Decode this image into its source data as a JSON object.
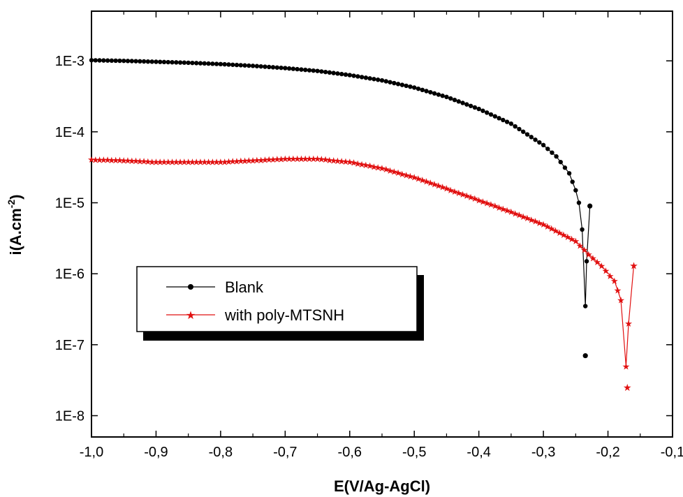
{
  "chart_data": {
    "type": "line",
    "xlabel": "E(V/Ag-AgCl)",
    "ylabel": "i(A.cm",
    "ylabel_superscript": "-2",
    "ylabel_close": ")",
    "xlim": [
      -1.0,
      -0.1
    ],
    "ylim_log10": [
      -8.3,
      -2.3
    ],
    "yscale": "log",
    "x_ticks": [
      {
        "value": -1.0,
        "label": "-1,0"
      },
      {
        "value": -0.9,
        "label": "-0,9"
      },
      {
        "value": -0.8,
        "label": "-0,8"
      },
      {
        "value": -0.7,
        "label": "-0,7"
      },
      {
        "value": -0.6,
        "label": "-0,6"
      },
      {
        "value": -0.5,
        "label": "-0,5"
      },
      {
        "value": -0.4,
        "label": "-0,4"
      },
      {
        "value": -0.3,
        "label": "-0,3"
      },
      {
        "value": -0.2,
        "label": "-0,2"
      },
      {
        "value": -0.1,
        "label": "-0,1"
      }
    ],
    "y_ticks": [
      {
        "value": 1e-08,
        "label": "1E-8"
      },
      {
        "value": 1e-07,
        "label": "1E-7"
      },
      {
        "value": 1e-06,
        "label": "1E-6"
      },
      {
        "value": 1e-05,
        "label": "1E-5"
      },
      {
        "value": 0.0001,
        "label": "1E-4"
      },
      {
        "value": 0.001,
        "label": "1E-3"
      }
    ],
    "legend": {
      "position": "lower-left, inside plot"
    },
    "series": [
      {
        "name": "Blank",
        "color": "#000000",
        "marker": "circle",
        "points": [
          [
            -1.0,
            0.00102
          ],
          [
            -0.95,
            0.001
          ],
          [
            -0.9,
            0.00097
          ],
          [
            -0.85,
            0.00094
          ],
          [
            -0.8,
            0.0009
          ],
          [
            -0.75,
            0.00085
          ],
          [
            -0.7,
            0.00079
          ],
          [
            -0.65,
            0.00072
          ],
          [
            -0.6,
            0.00063
          ],
          [
            -0.55,
            0.00053
          ],
          [
            -0.5,
            0.00042
          ],
          [
            -0.45,
            0.00031
          ],
          [
            -0.4,
            0.00021
          ],
          [
            -0.35,
            0.00013
          ],
          [
            -0.3,
            6.5e-05
          ],
          [
            -0.28,
            4.5e-05
          ],
          [
            -0.26,
            2.6e-05
          ],
          [
            -0.25,
            1.5e-05
          ],
          [
            -0.245,
            1e-05
          ],
          [
            -0.24,
            4.2e-06
          ],
          [
            -0.235,
            3.5e-07
          ],
          [
            -0.233,
            1.5e-06
          ],
          [
            -0.228,
            9e-06
          ],
          [
            -0.235,
            7e-08
          ]
        ]
      },
      {
        "name": "with poly-MTSNH",
        "color": "#e11010",
        "marker": "star",
        "points": [
          [
            -1.0,
            4.1e-05
          ],
          [
            -0.95,
            4e-05
          ],
          [
            -0.9,
            3.8e-05
          ],
          [
            -0.85,
            3.8e-05
          ],
          [
            -0.8,
            3.8e-05
          ],
          [
            -0.75,
            4e-05
          ],
          [
            -0.7,
            4.2e-05
          ],
          [
            -0.65,
            4.2e-05
          ],
          [
            -0.6,
            3.8e-05
          ],
          [
            -0.55,
            3.1e-05
          ],
          [
            -0.5,
            2.3e-05
          ],
          [
            -0.45,
            1.6e-05
          ],
          [
            -0.4,
            1.1e-05
          ],
          [
            -0.35,
            7.5e-06
          ],
          [
            -0.3,
            5e-06
          ],
          [
            -0.25,
            2.9e-06
          ],
          [
            -0.23,
            1.9e-06
          ],
          [
            -0.21,
            1.3e-06
          ],
          [
            -0.19,
            8e-07
          ],
          [
            -0.18,
            4.3e-07
          ],
          [
            -0.172,
            5e-08
          ],
          [
            -0.168,
            2e-07
          ],
          [
            -0.16,
            1.3e-06
          ],
          [
            -0.17,
            2.5e-08
          ]
        ]
      }
    ]
  }
}
